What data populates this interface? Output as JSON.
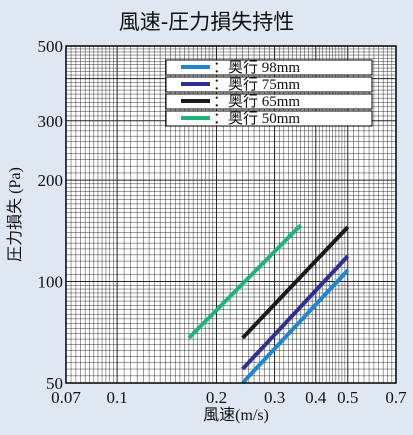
{
  "chart_data": {
    "type": "line",
    "title": "風速-圧力損失持性",
    "xlabel": "風速(m/s)",
    "ylabel": "圧力損失 (Pa)",
    "xscale": "log",
    "yscale": "log",
    "xlim": [
      0.07,
      0.7
    ],
    "ylim": [
      50,
      500
    ],
    "xticks": [
      "0.07",
      "0.1",
      "0.2",
      "0.3",
      "0.4",
      "0.5",
      "0.7"
    ],
    "yticks": [
      "50",
      "100",
      "200",
      "300",
      "500"
    ],
    "grid": true,
    "legend_position": "top-right",
    "series": [
      {
        "name": "：奥行 98mm",
        "color": "#1f86d0",
        "x": [
          0.24,
          0.5
        ],
        "y": [
          50,
          108
        ]
      },
      {
        "name": "：奥行 75mm",
        "color": "#2e3192",
        "x": [
          0.24,
          0.5
        ],
        "y": [
          55,
          119
        ]
      },
      {
        "name": "：奥行 65mm",
        "color": "#1a1a1a",
        "x": [
          0.24,
          0.5
        ],
        "y": [
          68,
          145
        ]
      },
      {
        "name": "：奥行 50mm",
        "color": "#1fb477",
        "x": [
          0.165,
          0.36
        ],
        "y": [
          68,
          147
        ]
      }
    ]
  }
}
